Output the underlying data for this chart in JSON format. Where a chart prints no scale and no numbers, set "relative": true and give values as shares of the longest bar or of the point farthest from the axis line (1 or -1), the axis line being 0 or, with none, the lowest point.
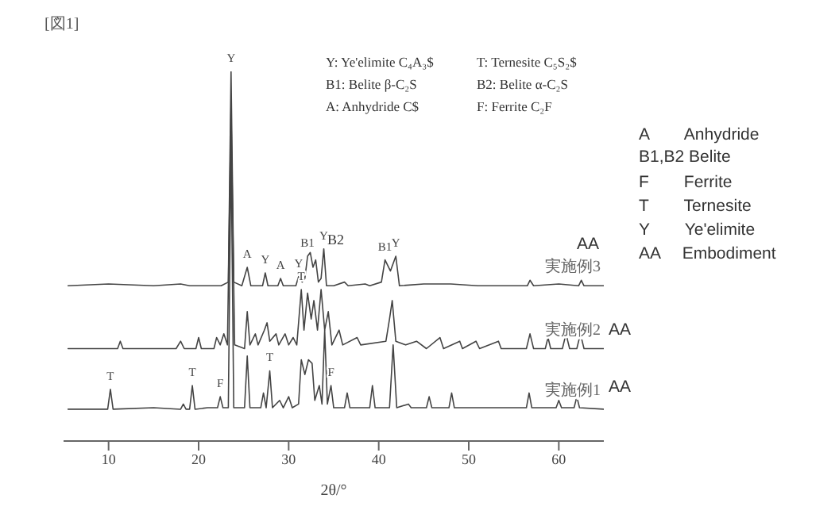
{
  "chart_data": {
    "type": "line",
    "title": "[図1]",
    "xlabel": "2θ/°",
    "relative": true,
    "xlim": [
      5,
      65
    ],
    "xticks": [
      10,
      20,
      30,
      40,
      50,
      60
    ],
    "grid": false,
    "legend": false,
    "marker": "none",
    "line_style": "solid",
    "series": [
      {
        "name": "実施例3",
        "color": "#444444",
        "x": [
          5.5,
          10,
          15,
          18,
          19,
          22.5,
          23.3,
          23.6,
          23.9,
          24.8,
          25.4,
          25.8,
          27.1,
          27.4,
          27.7,
          28.8,
          29.1,
          29.4,
          30.8,
          31.1,
          31.5,
          31.8,
          32.1,
          32.4,
          32.7,
          33.0,
          33.3,
          33.6,
          33.9,
          34.2,
          35,
          36.2,
          36.6,
          38.5,
          39,
          40.3,
          40.7,
          41.3,
          41.9,
          42.3,
          45,
          48,
          51,
          56.5,
          56.8,
          57.2,
          60,
          62.2,
          62.5,
          62.8,
          65
        ],
        "values": [
          0.42,
          0.425,
          0.42,
          0.425,
          0.42,
          0.42,
          0.43,
          1,
          0.43,
          0.42,
          0.47,
          0.42,
          0.42,
          0.455,
          0.42,
          0.42,
          0.44,
          0.42,
          0.42,
          0.445,
          0.43,
          0.44,
          0.5,
          0.51,
          0.47,
          0.49,
          0.43,
          0.44,
          0.52,
          0.42,
          0.42,
          0.43,
          0.42,
          0.425,
          0.42,
          0.43,
          0.49,
          0.46,
          0.5,
          0.42,
          0.425,
          0.425,
          0.42,
          0.42,
          0.435,
          0.42,
          0.425,
          0.42,
          0.435,
          0.42,
          0.42
        ]
      },
      {
        "name": "実施例2",
        "color": "#444444",
        "x": [
          5.5,
          11,
          11.3,
          11.6,
          17.5,
          18,
          18.4,
          19.7,
          20,
          20.3,
          21.7,
          22,
          22.4,
          22.8,
          23.2,
          23.6,
          24,
          25.1,
          25.4,
          25.7,
          26.3,
          26.6,
          27.3,
          27.6,
          27.9,
          28.6,
          28.9,
          29.6,
          30,
          30.5,
          30.9,
          31.4,
          31.7,
          32.1,
          32.5,
          32.8,
          33.2,
          33.6,
          34,
          34.4,
          34.8,
          35.6,
          36,
          37.6,
          38,
          40.8,
          41.2,
          41.5,
          41.9,
          43,
          44.2,
          45.3,
          46.8,
          47.2,
          49,
          49.3,
          50.8,
          51.2,
          53.3,
          53.6,
          56.4,
          56.8,
          57.2,
          58.5,
          58.8,
          59.1,
          60.4,
          60.8,
          61.2,
          62,
          62.4,
          62.8,
          65
        ],
        "values": [
          0.25,
          0.25,
          0.27,
          0.25,
          0.25,
          0.27,
          0.25,
          0.25,
          0.28,
          0.25,
          0.25,
          0.28,
          0.26,
          0.29,
          0.26,
          0.9,
          0.26,
          0.25,
          0.35,
          0.26,
          0.29,
          0.26,
          0.3,
          0.32,
          0.27,
          0.29,
          0.26,
          0.29,
          0.26,
          0.28,
          0.26,
          0.41,
          0.3,
          0.4,
          0.33,
          0.38,
          0.3,
          0.41,
          0.3,
          0.35,
          0.26,
          0.3,
          0.26,
          0.28,
          0.26,
          0.27,
          0.33,
          0.38,
          0.27,
          0.26,
          0.27,
          0.25,
          0.28,
          0.25,
          0.27,
          0.25,
          0.27,
          0.25,
          0.27,
          0.25,
          0.25,
          0.29,
          0.25,
          0.25,
          0.28,
          0.25,
          0.25,
          0.29,
          0.25,
          0.25,
          0.29,
          0.25,
          0.25
        ]
      },
      {
        "name": "実施例1",
        "color": "#444444",
        "x": [
          5.5,
          9.9,
          10.2,
          10.5,
          15,
          18,
          18.3,
          18.6,
          19,
          19.3,
          19.6,
          21,
          22.1,
          22.4,
          22.7,
          23.3,
          23.6,
          23.9,
          25.1,
          25.4,
          25.7,
          26.9,
          27.2,
          27.5,
          27.9,
          28.2,
          29,
          29.4,
          30,
          30.4,
          31.1,
          31.4,
          31.8,
          32.2,
          32.6,
          32.9,
          33.4,
          33.7,
          34.0,
          34.3,
          34.7,
          35,
          36.2,
          36.5,
          36.8,
          39,
          39.3,
          39.6,
          41.2,
          41.6,
          42,
          43.3,
          43.6,
          45.3,
          45.6,
          45.9,
          47.8,
          48.1,
          48.4,
          51,
          56.4,
          56.7,
          57,
          59.7,
          60,
          60.3,
          61.7,
          62,
          62.3,
          65
        ],
        "values": [
          0.086,
          0.086,
          0.14,
          0.086,
          0.09,
          0.086,
          0.1,
          0.086,
          0.086,
          0.15,
          0.086,
          0.09,
          0.09,
          0.12,
          0.09,
          0.09,
          0.8,
          0.09,
          0.09,
          0.23,
          0.09,
          0.09,
          0.13,
          0.09,
          0.19,
          0.09,
          0.11,
          0.09,
          0.12,
          0.09,
          0.1,
          0.22,
          0.18,
          0.22,
          0.21,
          0.11,
          0.15,
          0.1,
          0.3,
          0.1,
          0.15,
          0.09,
          0.09,
          0.13,
          0.09,
          0.09,
          0.15,
          0.09,
          0.09,
          0.26,
          0.09,
          0.1,
          0.09,
          0.09,
          0.12,
          0.09,
          0.09,
          0.13,
          0.09,
          0.09,
          0.09,
          0.13,
          0.09,
          0.09,
          0.11,
          0.09,
          0.09,
          0.12,
          0.09,
          0.086
        ]
      }
    ],
    "annotations": [
      "Y: Ye'elimite C₄A₃$",
      "T: Ternesite C₅S₂$",
      "B1: Belite β-C₂S",
      "B2: Belite α-C₂S",
      "A: Anhydride C$",
      "F: Ferrite C₂F",
      "A　　Anhydride",
      "B1,B2 Belite",
      "F　　Ferrite",
      "T　　Ternesite",
      "Y　　Ye'elimite",
      "AA　 Embodiment",
      "AA",
      "AA",
      "AA",
      "B2",
      {
        "text": "Y",
        "x": 23.6,
        "y": 1
      },
      {
        "text": "A",
        "x": 25.4,
        "y": 0.47
      },
      {
        "text": "Y",
        "x": 27.4,
        "y": 0.455
      },
      {
        "text": "A",
        "x": 29.1,
        "y": 0.44
      },
      {
        "text": "Y",
        "x": 31.1,
        "y": 0.445
      },
      {
        "text": "B1",
        "x": 32.1,
        "y": 0.5
      },
      {
        "text": "Y",
        "x": 33.9,
        "y": 0.52
      },
      {
        "text": "B1",
        "x": 40.7,
        "y": 0.49
      },
      {
        "text": "Y",
        "x": 41.9,
        "y": 0.5
      },
      {
        "text": "T",
        "x": 31.4,
        "y": 0.41
      },
      {
        "text": "T",
        "x": 10.2,
        "y": 0.14
      },
      {
        "text": "T",
        "x": 19.3,
        "y": 0.15
      },
      {
        "text": "F",
        "x": 22.4,
        "y": 0.12
      },
      {
        "text": "T",
        "x": 27.9,
        "y": 0.19
      },
      {
        "text": "F",
        "x": 34.7,
        "y": 0.15
      }
    ]
  }
}
